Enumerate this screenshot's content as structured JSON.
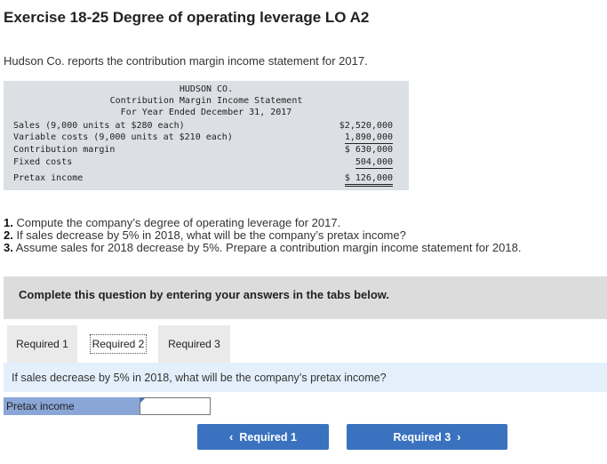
{
  "title": "Exercise 18-25 Degree of operating leverage LO A2",
  "intro": "Hudson Co. reports the contribution margin income statement for 2017.",
  "statement": {
    "company": "HUDSON CO.",
    "name": "Contribution Margin Income Statement",
    "period": "For Year Ended December 31, 2017",
    "rows": [
      {
        "label": "Sales (9,000 units at $280 each)",
        "amount": "$2,520,000"
      },
      {
        "label": "Variable costs (9,000 units at $210 each)",
        "amount": "1,890,000"
      },
      {
        "label": "Contribution margin",
        "amount": "$  630,000"
      },
      {
        "label": "Fixed costs",
        "amount": "504,000"
      },
      {
        "label": "Pretax income",
        "amount": "$  126,000"
      }
    ]
  },
  "questions": [
    {
      "num": "1.",
      "text": " Compute the company’s degree of operating leverage for 2017."
    },
    {
      "num": "2.",
      "text": " If sales decrease by 5% in 2018, what will be the company’s pretax income?"
    },
    {
      "num": "3.",
      "text": " Assume sales for 2018 decrease by 5%. Prepare a contribution margin income statement for 2018."
    }
  ],
  "banner": "Complete this question by entering your answers in the tabs below.",
  "tabs": [
    {
      "label": "Required 1"
    },
    {
      "label": "Required 2"
    },
    {
      "label": "Required 3"
    }
  ],
  "active_tab_prompt": "If sales decrease by 5% in 2018, what will be the company’s pretax income?",
  "answer": {
    "label": "Pretax income",
    "value": ""
  },
  "nav": {
    "prev": "Required 1",
    "next": "Required 3",
    "prev_chevron": "‹",
    "next_chevron": "›"
  }
}
